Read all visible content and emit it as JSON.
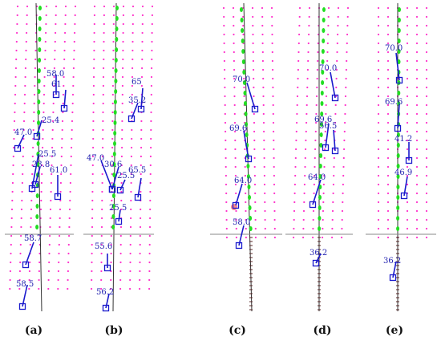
{
  "figure": {
    "panels": [
      {
        "id": "a",
        "caption": "(a)",
        "labels": [
          "58.0",
          "61",
          "25.4",
          "47.0",
          "25.5",
          "23.8",
          "61.0",
          "58.7",
          "58.5"
        ]
      },
      {
        "id": "b",
        "caption": "(b)",
        "labels": [
          "65",
          "35.2",
          "47.0",
          "30.6",
          "25.5",
          "65.5",
          "25.5",
          "55.6",
          "56.2"
        ]
      },
      {
        "id": "c",
        "caption": "(c)",
        "labels": [
          "70.0",
          "69.6",
          "64.0",
          "58.0"
        ]
      },
      {
        "id": "d",
        "caption": "(d)",
        "labels": [
          "70.0",
          "69.6",
          "56.5",
          "64.0",
          "36.2"
        ]
      },
      {
        "id": "e",
        "caption": "(e)",
        "labels": [
          "70.0",
          "69.6",
          "41.2",
          "46.9",
          "36.2"
        ]
      }
    ],
    "colors": {
      "grid_dots": "#ff33cc",
      "path_dots": "#22dd22",
      "vectors": "#1a1acc",
      "axis_line": "#333333",
      "highlight": "#ff8a8a"
    }
  }
}
